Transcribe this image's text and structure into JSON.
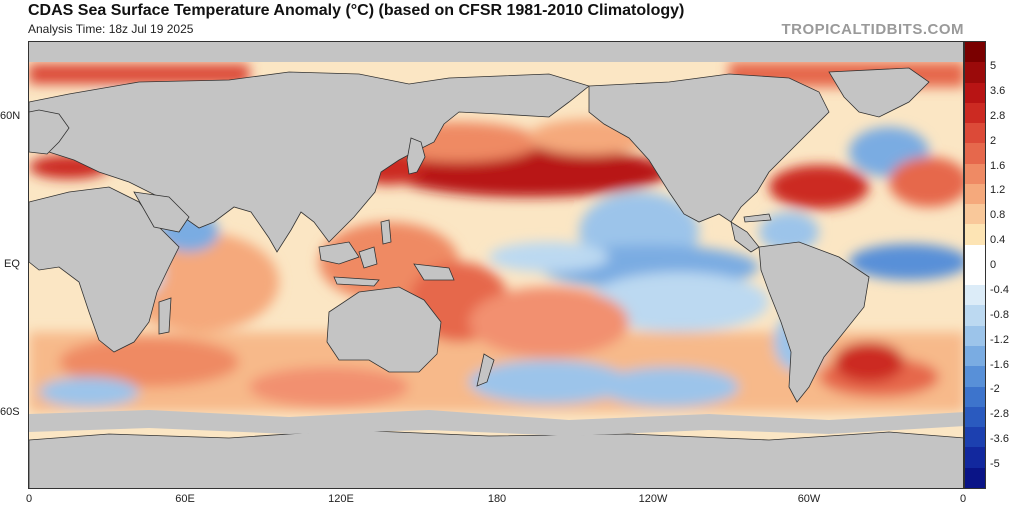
{
  "header": {
    "title": "CDAS Sea Surface Temperature Anomaly (°C) (based on CFSR 1981-2010 Climatology)",
    "subtitle": "Analysis Time: 18z Jul 19 2025",
    "watermark": "TROPICALTIDBITS.COM"
  },
  "axes": {
    "y_labels": [
      "60N",
      "EQ",
      "60S"
    ],
    "x_labels": [
      "0",
      "60E",
      "120E",
      "180",
      "120W",
      "60W",
      "0"
    ]
  },
  "colorbar": {
    "labels": [
      "5",
      "3.6",
      "2.8",
      "2",
      "1.6",
      "1.2",
      "0.8",
      "0.4",
      "0",
      "-0.4",
      "-0.8",
      "-1.2",
      "-1.6",
      "-2",
      "-2.8",
      "-3.6",
      "-5"
    ],
    "colors": [
      "#7a0000",
      "#9b0a0a",
      "#b81414",
      "#cc2a22",
      "#dc4a38",
      "#e6684c",
      "#ef8a64",
      "#f5a97c",
      "#f9c89a",
      "#fde4b4",
      "#ffffff",
      "#ffffff",
      "#dcecf8",
      "#bcd9f1",
      "#9cc4ea",
      "#7aace2",
      "#5890d8",
      "#3d74cc",
      "#2a5abf",
      "#1c40b0",
      "#12289e",
      "#0a1487"
    ],
    "land_color": "#c4c4c4",
    "ocean_neutral": "#ffffff"
  },
  "chart_data": {
    "type": "heatmap",
    "title": "CDAS Sea Surface Temperature Anomaly (°C) (based on CFSR 1981-2010 Climatology)",
    "subtitle": "Analysis Time: 18z Jul 19 2025",
    "x_ticks": [
      "0",
      "60E",
      "120E",
      "180",
      "120W",
      "60W",
      "0"
    ],
    "y_ticks": [
      "60N",
      "EQ",
      "60S"
    ],
    "colorbar_ticks": [
      5,
      3.6,
      2.8,
      2,
      1.6,
      1.2,
      0.8,
      0.4,
      0,
      -0.4,
      -0.8,
      -1.2,
      -1.6,
      -2,
      -2.8,
      -3.6,
      -5
    ],
    "colorbar_range": [
      -5,
      5
    ],
    "units": "°C"
  }
}
